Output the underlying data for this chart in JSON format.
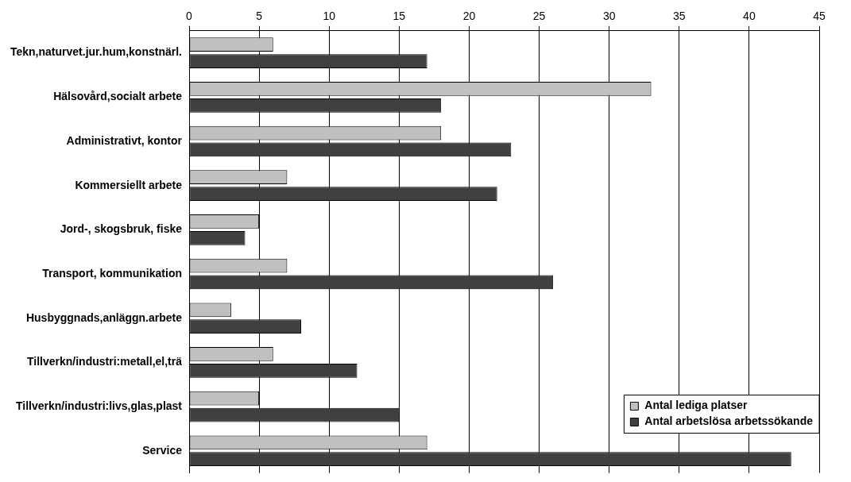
{
  "chart_data": {
    "type": "bar",
    "orientation": "horizontal",
    "categories": [
      "Tekn,naturvet.jur.hum,konstnärl.",
      "Hälsovård,socialt arbete",
      "Administrativt, kontor",
      "Kommersiellt arbete",
      "Jord-, skogsbruk, fiske",
      "Transport, kommunikation",
      "Husbyggnads,anläggn.arbete",
      "Tillverkn/industri:metall,el,trä",
      "Tillverkn/industri:livs,glas,plast",
      "Service"
    ],
    "series": [
      {
        "name": "Antal lediga platser",
        "color": "#c0c0c0",
        "values": [
          6,
          33,
          18,
          7,
          5,
          7,
          3,
          6,
          5,
          17
        ]
      },
      {
        "name": "Antal arbetslösa arbetssökande",
        "color": "#404040",
        "values": [
          17,
          18,
          23,
          22,
          4,
          26,
          8,
          12,
          15,
          43
        ]
      }
    ],
    "xlim": [
      0,
      45
    ],
    "xticks": [
      0,
      5,
      10,
      15,
      20,
      25,
      30,
      35,
      40,
      45
    ],
    "grid": "x",
    "legend": "bottom right"
  }
}
